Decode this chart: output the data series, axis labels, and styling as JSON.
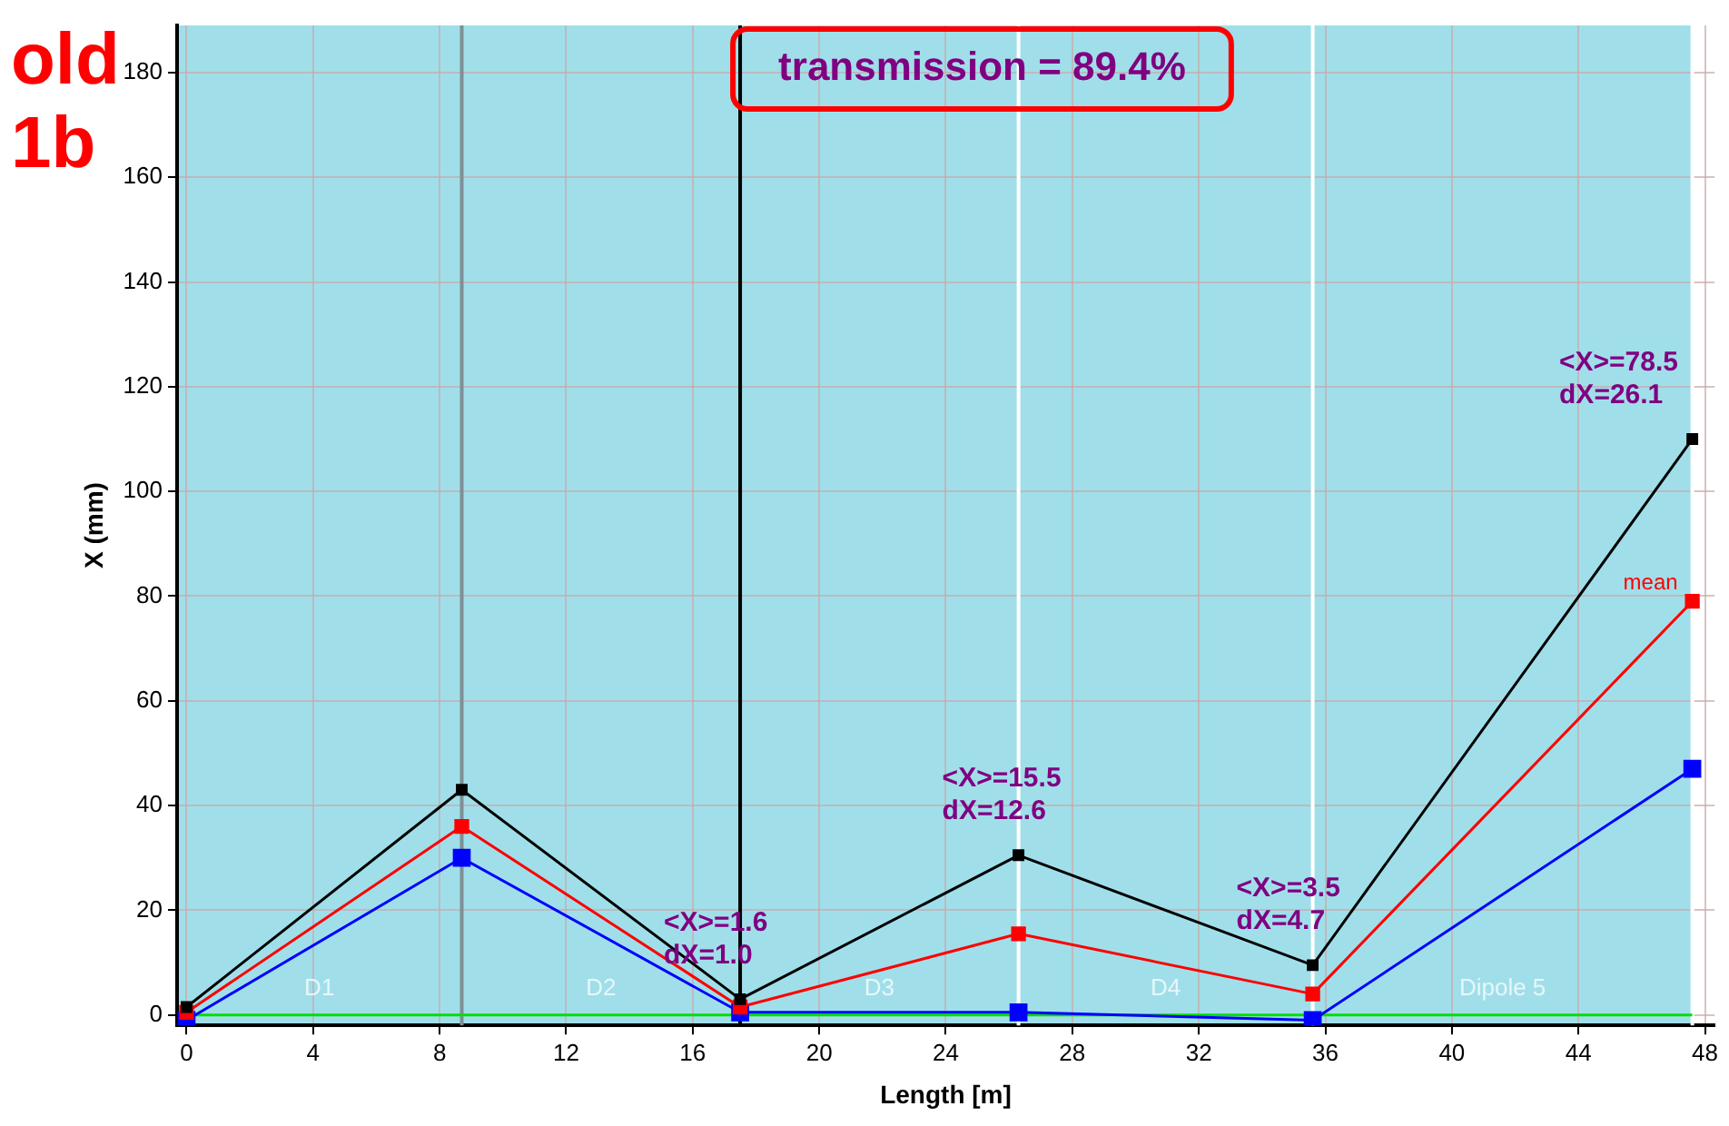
{
  "chart_data": {
    "type": "line",
    "xlabel": "Length [m]",
    "ylabel": "X (mm)",
    "xlim": [
      -0.3,
      48.3
    ],
    "ylim": [
      -2,
      189
    ],
    "xticks": [
      0,
      4,
      8,
      12,
      16,
      20,
      24,
      28,
      32,
      36,
      40,
      44,
      48
    ],
    "yticks": [
      0,
      20,
      40,
      60,
      80,
      100,
      120,
      140,
      160,
      180
    ],
    "grid": true,
    "legend": false,
    "marker": "square",
    "line_style": "solid",
    "series": [
      {
        "color": "#000000",
        "x": [
          0,
          8.7,
          17.5,
          26.3,
          35.6,
          47.6
        ],
        "values": [
          1.5,
          43,
          3,
          30.5,
          9.5,
          110
        ]
      },
      {
        "name": "mean",
        "color": "#ff0000",
        "x": [
          0,
          8.7,
          17.5,
          26.3,
          35.6,
          47.6
        ],
        "values": [
          0.5,
          36,
          1.5,
          15.5,
          4,
          79
        ]
      },
      {
        "color": "#0000ff",
        "x": [
          0,
          8.7,
          17.5,
          26.3,
          35.6,
          47.6
        ],
        "values": [
          -1,
          30,
          0.5,
          0.5,
          -1,
          47
        ]
      },
      {
        "color": "#00e000",
        "marker": "none",
        "x": [
          0,
          47.6
        ],
        "values": [
          0,
          0
        ]
      }
    ],
    "ref_lines": [
      {
        "axis": "x",
        "value": 8.7,
        "color": "#7f8f94"
      },
      {
        "axis": "x",
        "value": 17.5,
        "color": "#000000"
      },
      {
        "axis": "x",
        "value": 26.3,
        "color": "#ffffff"
      },
      {
        "axis": "x",
        "value": 35.6,
        "color": "#ffffff"
      },
      {
        "axis": "x",
        "value": 47.6,
        "color": "#ffffff"
      }
    ],
    "bands": [
      {
        "axis": "x",
        "from": -0.3,
        "to": 8.7,
        "label": "D1",
        "color": "#a0dfea"
      },
      {
        "axis": "x",
        "from": 8.7,
        "to": 17.5,
        "label": "D2",
        "color": "#a0dfea"
      },
      {
        "axis": "x",
        "from": 17.5,
        "to": 26.3,
        "label": "D3",
        "color": "#a0dfea"
      },
      {
        "axis": "x",
        "from": 26.3,
        "to": 35.6,
        "label": "D4",
        "color": "#a0dfea"
      },
      {
        "axis": "x",
        "from": 35.6,
        "to": 47.6,
        "label": "Dipole 5",
        "color": "#a0dfea"
      }
    ],
    "annotations": [
      "old\n1b",
      "transmission = 89.4%",
      {
        "text": "<X>=1.6\ndX=1.0",
        "x": 17.5,
        "y": 3
      },
      {
        "text": "<X>=15.5\ndX=12.6",
        "x": 26.3,
        "y": 30.5
      },
      {
        "text": "<X>=3.5\ndX=4.7",
        "x": 35.6,
        "y": 9.5
      },
      {
        "text": "<X>=78.5\ndX=26.1",
        "x": 47.6,
        "y": 110
      }
    ]
  }
}
